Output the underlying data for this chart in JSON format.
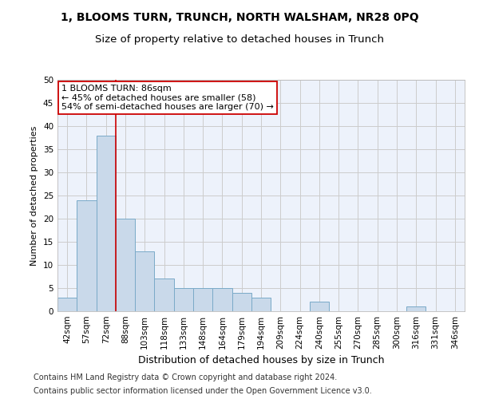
{
  "title": "1, BLOOMS TURN, TRUNCH, NORTH WALSHAM, NR28 0PQ",
  "subtitle": "Size of property relative to detached houses in Trunch",
  "xlabel": "Distribution of detached houses by size in Trunch",
  "ylabel": "Number of detached properties",
  "categories": [
    "42sqm",
    "57sqm",
    "72sqm",
    "88sqm",
    "103sqm",
    "118sqm",
    "133sqm",
    "148sqm",
    "164sqm",
    "179sqm",
    "194sqm",
    "209sqm",
    "224sqm",
    "240sqm",
    "255sqm",
    "270sqm",
    "285sqm",
    "300sqm",
    "316sqm",
    "331sqm",
    "346sqm"
  ],
  "values": [
    3,
    24,
    38,
    20,
    13,
    7,
    5,
    5,
    5,
    4,
    3,
    0,
    0,
    2,
    0,
    0,
    0,
    0,
    1,
    0,
    0
  ],
  "bar_color": "#c9d9ea",
  "bar_edge_color": "#7aaac8",
  "grid_color": "#cccccc",
  "background_color": "#edf2fb",
  "annotation_box_edge_color": "#cc0000",
  "annotation_line_color": "#cc0000",
  "annotation_text_line1": "1 BLOOMS TURN: 86sqm",
  "annotation_text_line2": "← 45% of detached houses are smaller (58)",
  "annotation_text_line3": "54% of semi-detached houses are larger (70) →",
  "ylim": [
    0,
    50
  ],
  "yticks": [
    0,
    5,
    10,
    15,
    20,
    25,
    30,
    35,
    40,
    45,
    50
  ],
  "vline_x": 2.5,
  "footer1": "Contains HM Land Registry data © Crown copyright and database right 2024.",
  "footer2": "Contains public sector information licensed under the Open Government Licence v3.0.",
  "title_fontsize": 10,
  "subtitle_fontsize": 9.5,
  "xlabel_fontsize": 9,
  "ylabel_fontsize": 8,
  "tick_fontsize": 7.5,
  "annotation_fontsize": 8,
  "footer_fontsize": 7
}
